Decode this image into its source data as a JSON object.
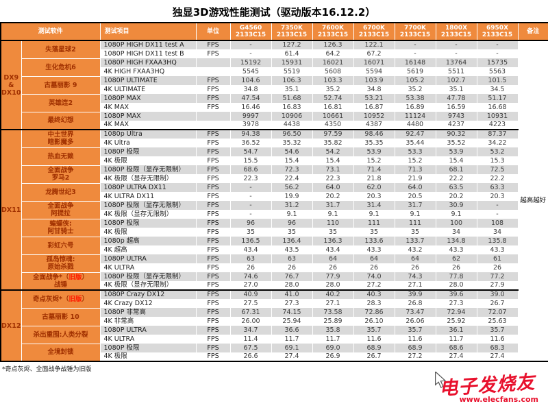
{
  "title": "独显3D游戏性能测试（驱动版本16.12.2）",
  "colors": {
    "orange": "#EF8A3D",
    "stripe": "#D9D9D9",
    "game_text": "#A03000",
    "highlight": "#FF1A00",
    "watermark": "#E8112D"
  },
  "watermark": {
    "brand": "电子发烧友",
    "url": "www.elecfans.com",
    "cursor_icon": "mouse-pointer-icon"
  },
  "chart_data": {
    "type": "table",
    "title": "独显3D游戏性能测试（驱动版本16.12.2）",
    "note": "越高越好",
    "footnote": "*奇点灰烬、全面战争战锤为旧版",
    "columns": {
      "software": "测试软件",
      "item": "测试项目",
      "unit": "单位",
      "note": "备注"
    },
    "cpus": [
      {
        "model": "G4560",
        "mem": "2133C15"
      },
      {
        "model": "7350K",
        "mem": "2133C15"
      },
      {
        "model": "7600K",
        "mem": "2133C15"
      },
      {
        "model": "6700K",
        "mem": "2133C15"
      },
      {
        "model": "7700K",
        "mem": "2133C15"
      },
      {
        "model": "1800X",
        "mem": "2133C15"
      },
      {
        "model": "6950X",
        "mem": "2133C15"
      }
    ],
    "groups": [
      {
        "label": [
          "DX9",
          "&",
          "DX10"
        ],
        "games": [
          {
            "name": [
              "失落星球2"
            ],
            "rows": [
              {
                "item": "1080P HIGH DX11 test A",
                "unit": "FPS",
                "values": [
                  "-",
                  "127.2",
                  "126.3",
                  "122.1",
                  "-",
                  "-",
                  "-"
                ]
              },
              {
                "item": "1080P HIGH DX11 test B",
                "unit": "FPS",
                "values": [
                  "-",
                  "61.4",
                  "64.2",
                  "67.2",
                  "-",
                  "-",
                  "-"
                ]
              }
            ]
          },
          {
            "name": [
              "生化危机6"
            ],
            "rows": [
              {
                "item": "1080P HIGH FXAA3HQ",
                "unit": "",
                "values": [
                  "15192",
                  "15931",
                  "16021",
                  "16071",
                  "16148",
                  "13764",
                  "15735"
                ]
              },
              {
                "item": "4K HIGH FXAA3HQ",
                "unit": "",
                "values": [
                  "5545",
                  "5519",
                  "5608",
                  "5594",
                  "5619",
                  "5511",
                  "5563"
                ]
              }
            ]
          },
          {
            "name": [
              "古墓丽影 9"
            ],
            "rows": [
              {
                "item": "1080P ULTIMATE",
                "unit": "FPS",
                "values": [
                  "104.6",
                  "106.3",
                  "103.3",
                  "103.9",
                  "105.2",
                  "102.7",
                  "101.5"
                ]
              },
              {
                "item": "4K ULTIMATE",
                "unit": "FPS",
                "values": [
                  "34.8",
                  "35.1",
                  "35.2",
                  "34.8",
                  "35.2",
                  "35.1",
                  "34.5"
                ]
              }
            ]
          },
          {
            "name": [
              "英雄连2"
            ],
            "rows": [
              {
                "item": "1080P MAX",
                "unit": "FPS",
                "values": [
                  "47.54",
                  "51.68",
                  "52.74",
                  "53.21",
                  "53.38",
                  "47.78",
                  "51.17"
                ]
              },
              {
                "item": "4K MAX",
                "unit": "FPS",
                "values": [
                  "16.46",
                  "16.83",
                  "16.81",
                  "16.87",
                  "16.89",
                  "16.59",
                  "16.68"
                ]
              }
            ]
          },
          {
            "name": [
              "最终幻想"
            ],
            "rows": [
              {
                "item": "1080P MAX",
                "unit": "",
                "values": [
                  "9997",
                  "10906",
                  "10661",
                  "10952",
                  "11124",
                  "9743",
                  "10931"
                ]
              },
              {
                "item": "4K MAX",
                "unit": "",
                "values": [
                  "3978",
                  "4438",
                  "4350",
                  "4387",
                  "4480",
                  "4237",
                  "4223"
                ]
              }
            ]
          }
        ]
      },
      {
        "label": [
          "DX11"
        ],
        "games": [
          {
            "name": [
              "中土世界",
              "暗影魔多"
            ],
            "rows": [
              {
                "item": "1080p Ultra",
                "unit": "FPS",
                "values": [
                  "94.38",
                  "96.50",
                  "97.59",
                  "98.46",
                  "92.47",
                  "90.32",
                  "87.37"
                ]
              },
              {
                "item": "4K Ultra",
                "unit": "FPS",
                "values": [
                  "36.52",
                  "35.32",
                  "35.82",
                  "35.35",
                  "35.44",
                  "35.52",
                  "34.22"
                ]
              }
            ]
          },
          {
            "name": [
              "热血无赖"
            ],
            "rows": [
              {
                "item": "1080P 极限",
                "unit": "FPS",
                "values": [
                  "54.7",
                  "54.6",
                  "54.2",
                  "53.9",
                  "53.3",
                  "53.9",
                  "53.2"
                ]
              },
              {
                "item": "4K 极限",
                "unit": "FPS",
                "values": [
                  "15.5",
                  "15.4",
                  "15.4",
                  "15.2",
                  "15.2",
                  "15.4",
                  "15.3"
                ]
              }
            ]
          },
          {
            "name": [
              "全面战争",
              "罗马2"
            ],
            "rows": [
              {
                "item": "1080P 极限（显存无限制）",
                "unit": "FPS",
                "values": [
                  "68.6",
                  "72.3",
                  "73.1",
                  "71.4",
                  "71.3",
                  "68.1",
                  "72.5"
                ]
              },
              {
                "item": "4K 极限（显存无限制）",
                "unit": "FPS",
                "values": [
                  "22.3",
                  "22.4",
                  "22.3",
                  "21.8",
                  "21.9",
                  "22.2",
                  "22.2"
                ]
              }
            ]
          },
          {
            "name": [
              "龙腾世纪3"
            ],
            "rows": [
              {
                "item": "1080P ULTRA DX11",
                "unit": "FPS",
                "values": [
                  "-",
                  "56.2",
                  "64.0",
                  "62.0",
                  "64.0",
                  "63.5",
                  "63.3"
                ]
              },
              {
                "item": "4K ULTRA DX11",
                "unit": "FPS",
                "values": [
                  "-",
                  "19.9",
                  "20.2",
                  "20.3",
                  "20.5",
                  "20.2",
                  "20.3"
                ]
              }
            ]
          },
          {
            "name": [
              "全面战争",
              "阿提拉"
            ],
            "rows": [
              {
                "item": "1080P 极限（显存无限制）",
                "unit": "FPS",
                "values": [
                  "-",
                  "31.2",
                  "31.7",
                  "31.4",
                  "31.7",
                  "30.9",
                  "-"
                ]
              },
              {
                "item": "4K 极限（显存无限制）",
                "unit": "FPS",
                "values": [
                  "-",
                  "9.1",
                  "9.1",
                  "9.1",
                  "9.1",
                  "9.1",
                  "-"
                ]
              }
            ]
          },
          {
            "name": [
              "蝙蝠侠:",
              "阿甘骑士"
            ],
            "rows": [
              {
                "item": "1080P 极限",
                "unit": "FPS",
                "values": [
                  "96",
                  "96",
                  "110",
                  "111",
                  "111",
                  "100",
                  "108"
                ]
              },
              {
                "item": "4K 极限",
                "unit": "FPS",
                "values": [
                  "35",
                  "35",
                  "35",
                  "35",
                  "35",
                  "34",
                  "34"
                ]
              }
            ]
          },
          {
            "name": [
              "彩虹六号"
            ],
            "rows": [
              {
                "item": "1080p 超高",
                "unit": "FPS",
                "values": [
                  "136.5",
                  "136.4",
                  "136.3",
                  "133.6",
                  "133.7",
                  "134.8",
                  "135.8"
                ]
              },
              {
                "item": "4K 超高",
                "unit": "FPS",
                "values": [
                  "43.4",
                  "43.5",
                  "43.4",
                  "43.3",
                  "43.2",
                  "43.3",
                  "43.3"
                ]
              }
            ]
          },
          {
            "name": [
              "孤岛惊魂:",
              "原始杀戮"
            ],
            "rows": [
              {
                "item": "1080P ULTRA",
                "unit": "FPS",
                "values": [
                  "63",
                  "63",
                  "64",
                  "64",
                  "64",
                  "62",
                  "61"
                ]
              },
              {
                "item": "4K ULTRA",
                "unit": "FPS",
                "values": [
                  "26",
                  "26",
                  "26",
                  "26",
                  "26",
                  "26",
                  "26"
                ]
              }
            ]
          },
          {
            "name": [
              "全面战争*（旧版）",
              "战锤"
            ],
            "rows": [
              {
                "item": "1080P 极限（显存无限制）",
                "unit": "FPS",
                "values": [
                  "74.6",
                  "76.7",
                  "77.9",
                  "74.0",
                  "74.3",
                  "77.8",
                  "77.2"
                ]
              },
              {
                "item": "4K 极限（显存无限制）",
                "unit": "FPS",
                "values": [
                  "27.0",
                  "28.0",
                  "28.0",
                  "27.2",
                  "27.1",
                  "28.0",
                  "27.9"
                ]
              }
            ]
          }
        ]
      },
      {
        "label": [
          "DX12"
        ],
        "games": [
          {
            "name": [
              "奇点灰烬*（旧版）"
            ],
            "rows": [
              {
                "item": "1080P Crazy DX12",
                "unit": "FPS",
                "values": [
                  "40.9",
                  "41.0",
                  "40.2",
                  "40.3",
                  "39.9",
                  "39.6",
                  "39.0"
                ]
              },
              {
                "item": "4K Crazy DX12",
                "unit": "FPS",
                "values": [
                  "27.5",
                  "27.3",
                  "27.1",
                  "28.3",
                  "26.8",
                  "27.3",
                  "26.7"
                ]
              }
            ]
          },
          {
            "name": [
              "古墓丽影 10"
            ],
            "rows": [
              {
                "item": "1080P 非常高",
                "unit": "FPS",
                "values": [
                  "67.31",
                  "74.15",
                  "73.58",
                  "72.86",
                  "73.47",
                  "72.94",
                  "72.07"
                ]
              },
              {
                "item": "4K 非常高",
                "unit": "FPS",
                "values": [
                  "26.00",
                  "25.94",
                  "25.89",
                  "26.10",
                  "26.06",
                  "25.92",
                  "25.63"
                ]
              }
            ]
          },
          {
            "name": [
              "杀出重围:人类分裂"
            ],
            "rows": [
              {
                "item": "1080P ULTRA",
                "unit": "FPS",
                "values": [
                  "34.7",
                  "36.6",
                  "35.8",
                  "35.7",
                  "35.7",
                  "36.1",
                  "35.7"
                ]
              },
              {
                "item": "4K ULTRA",
                "unit": "FPS",
                "values": [
                  "11.4",
                  "11.7",
                  "11.7",
                  "11.6",
                  "11.6",
                  "11.7",
                  "11.6"
                ]
              }
            ]
          },
          {
            "name": [
              "全境封锁"
            ],
            "rows": [
              {
                "item": "1080P 极限",
                "unit": "FPS",
                "values": [
                  "67.5",
                  "69.1",
                  "69.0",
                  "68.9",
                  "68.9",
                  "68.6",
                  "68.3"
                ]
              },
              {
                "item": "4K 极限",
                "unit": "FPS",
                "values": [
                  "26.6",
                  "27.4",
                  "26.9",
                  "26.7",
                  "27.2",
                  "27.4",
                  "27.4"
                ]
              }
            ]
          }
        ]
      }
    ]
  }
}
